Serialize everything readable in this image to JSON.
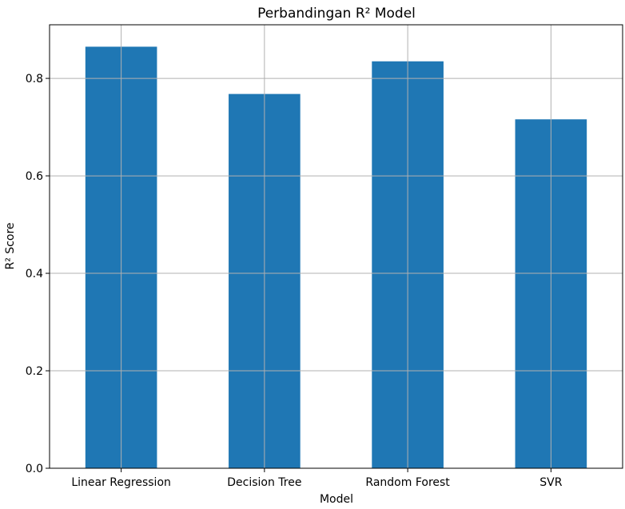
{
  "chart_data": {
    "type": "bar",
    "title": "Perbandingan R² Model",
    "xlabel": "Model",
    "ylabel": "R² Score",
    "categories": [
      "Linear Regression",
      "Decision Tree",
      "Random Forest",
      "SVR"
    ],
    "values": [
      0.865,
      0.768,
      0.835,
      0.716
    ],
    "ylim": [
      0,
      0.91
    ],
    "yticks": [
      0.0,
      0.2,
      0.4,
      0.6,
      0.8
    ],
    "ytick_labels": [
      "0.0",
      "0.2",
      "0.4",
      "0.6",
      "0.8"
    ],
    "grid": true,
    "legend": "none",
    "bar_color": "#1f77b4",
    "grid_color": "#b0b0b0"
  }
}
